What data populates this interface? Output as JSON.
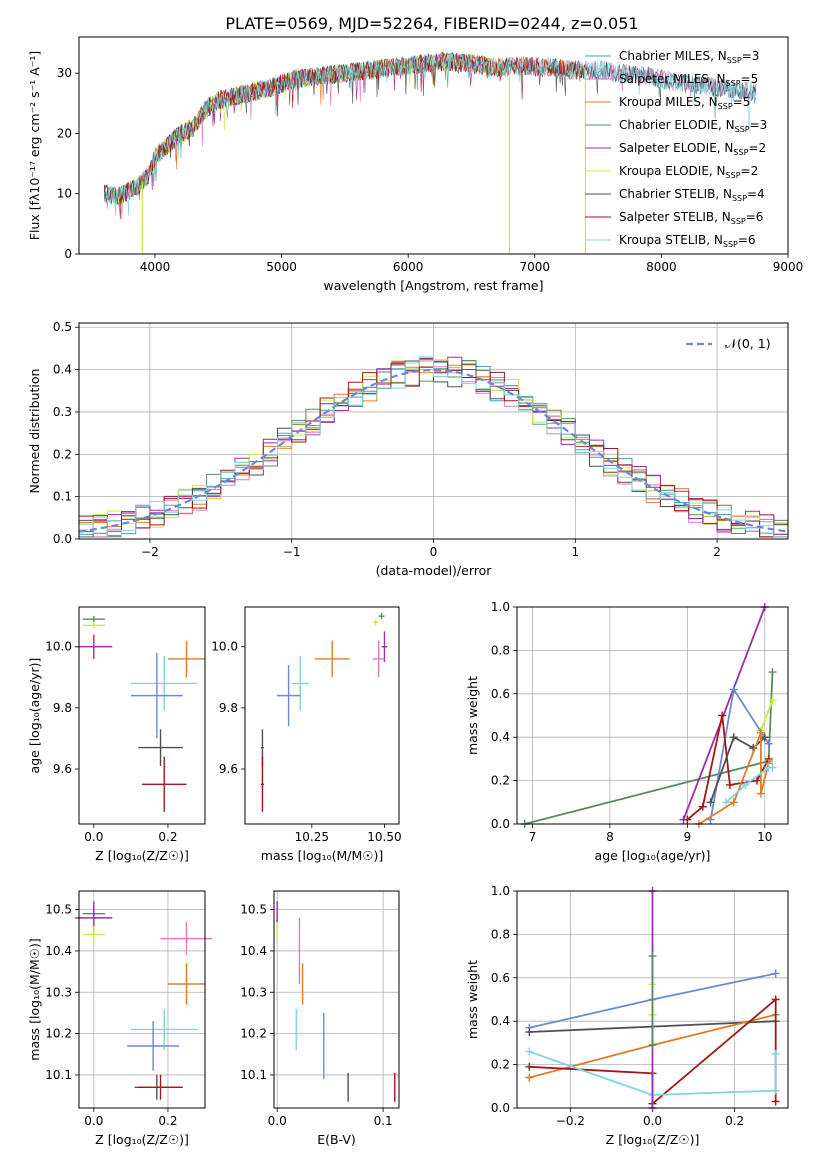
{
  "page_title": "PLATE=0569, MJD=52264, FIBERID=0244, z=0.051",
  "colors": {
    "chabrier_miles": "#4a9fb5",
    "salpeter_miles": "#e377c2",
    "kroupa_miles": "#e07b28",
    "chabrier_elodie": "#5a8a62",
    "salpeter_elodie": "#9a2fa8",
    "kroupa_elodie": "#cfe84a",
    "chabrier_stelib": "#505050",
    "salpeter_stelib": "#a01818",
    "kroupa_stelib": "#7fd6dc",
    "cornflower": "#6a8ad8",
    "grid": "#b0b0b0"
  },
  "chart_data": [
    {
      "id": "spectrum",
      "type": "line",
      "title": "PLATE=0569, MJD=52264, FIBERID=0244, z=0.051",
      "xlabel": "wavelength [Angstrom, rest frame]",
      "ylabel": "Flux [fλ10⁻¹⁷ erg cm⁻² s⁻¹ A⁻¹]",
      "xlim": [
        3400,
        9000
      ],
      "ylim": [
        0,
        36
      ],
      "xticks": [
        "4000",
        "5000",
        "6000",
        "7000",
        "8000",
        "9000"
      ],
      "yticks": [
        "0",
        "10",
        "20",
        "30"
      ],
      "grid": false,
      "legend_position": "top-right",
      "legend": [
        {
          "label": "Chabrier MILES, N",
          "sub": "SSP",
          "tail": "=3"
        },
        {
          "label": "Salpeter MILES, N",
          "sub": "SSP",
          "tail": "=5"
        },
        {
          "label": "Kroupa MILES, N",
          "sub": "SSP",
          "tail": "=5"
        },
        {
          "label": "Chabrier ELODIE, N",
          "sub": "SSP",
          "tail": "=3"
        },
        {
          "label": "Salpeter ELODIE, N",
          "sub": "SSP",
          "tail": "=2"
        },
        {
          "label": "Kroupa ELODIE, N",
          "sub": "SSP",
          "tail": "=2"
        },
        {
          "label": "Chabrier STELIB, N",
          "sub": "SSP",
          "tail": "=4"
        },
        {
          "label": "Salpeter STELIB, N",
          "sub": "SSP",
          "tail": "=6"
        },
        {
          "label": "Kroupa STELIB, N",
          "sub": "SSP",
          "tail": "=6"
        }
      ],
      "continuum": {
        "x": [
          3600,
          3700,
          3850,
          3950,
          4000,
          4100,
          4200,
          4300,
          4400,
          4500,
          4700,
          4900,
          5100,
          5300,
          5500,
          5700,
          5900,
          6100,
          6300,
          6500,
          6700,
          6900,
          7100,
          7300,
          7500,
          7700,
          7900,
          8100,
          8300,
          8500,
          8700
        ],
        "y": [
          10,
          9.5,
          11,
          13,
          16,
          18,
          20,
          21,
          24,
          25.5,
          26.5,
          27.5,
          29,
          29.5,
          30,
          30.5,
          31,
          31.5,
          32,
          31.5,
          31,
          31.2,
          31,
          30.5,
          30.5,
          30,
          29.5,
          28.5,
          28,
          27.5,
          27
        ]
      },
      "series_ranges": [
        {
          "series": "Chabrier MILES",
          "x": [
            3600,
            8750
          ]
        },
        {
          "series": "Salpeter MILES",
          "x": [
            3600,
            8750
          ]
        },
        {
          "series": "Kroupa MILES",
          "x": [
            3600,
            7400
          ]
        },
        {
          "series": "Chabrier ELODIE",
          "x": [
            3600,
            6800
          ]
        },
        {
          "series": "Salpeter ELODIE",
          "x": [
            3600,
            6800
          ]
        },
        {
          "series": "Kroupa ELODIE",
          "x": [
            3600,
            6800
          ]
        },
        {
          "series": "Chabrier STELIB",
          "x": [
            3600,
            8750
          ]
        },
        {
          "series": "Salpeter STELIB",
          "x": [
            3600,
            7400
          ]
        },
        {
          "series": "Kroupa STELIB",
          "x": [
            3600,
            8750
          ]
        }
      ],
      "drops": [
        {
          "x": 3900,
          "y": 0
        },
        {
          "x": 6800,
          "y": 0
        },
        {
          "x": 7400,
          "y": 0
        }
      ]
    },
    {
      "id": "residuals",
      "type": "histogram",
      "xlabel": "(data-model)/error",
      "ylabel": "Normed distribution",
      "xlim": [
        -2.5,
        2.5
      ],
      "ylim": [
        0,
        0.51
      ],
      "xticks": [
        "−2",
        "−1",
        "0",
        "1",
        "2"
      ],
      "yticks": [
        "0.0",
        "0.1",
        "0.2",
        "0.3",
        "0.4",
        "0.5"
      ],
      "grid": true,
      "legend_position": "top-right",
      "legend": [
        {
          "label": "𝒩(0, 1)"
        }
      ],
      "bin_width": 0.1,
      "bin_start": -2.5
    },
    {
      "id": "age_vs_Z",
      "type": "errorbar",
      "xlabel": "Z [log₁₀(Z/Z☉)]",
      "ylabel": "age  [log₁₀(age/yr)]",
      "xlim": [
        -0.04,
        0.3
      ],
      "ylim": [
        9.42,
        10.13
      ],
      "xticks": [
        "0.0",
        "0.2"
      ],
      "yticks": [
        "9.6",
        "9.8",
        "10.0"
      ],
      "points": [
        {
          "x": 0.0,
          "y": 10.09,
          "xerr": 0.03,
          "yerr": 0.01,
          "c": "chabrier_elodie"
        },
        {
          "x": 0.0,
          "y": 10.07,
          "xerr": 0.03,
          "yerr": 0.01,
          "c": "kroupa_elodie"
        },
        {
          "x": 0.0,
          "y": 10.0,
          "xerr": 0.05,
          "yerr": 0.04,
          "c": "salpeter_elodie"
        },
        {
          "x": 0.25,
          "y": 9.96,
          "xerr": 0.05,
          "yerr": 0.06,
          "c": "kroupa_miles"
        },
        {
          "x": 0.19,
          "y": 9.88,
          "xerr": 0.09,
          "yerr": 0.09,
          "c": "kroupa_stelib"
        },
        {
          "x": 0.17,
          "y": 9.84,
          "xerr": 0.07,
          "yerr": 0.14,
          "c": "cornflower"
        },
        {
          "x": 0.18,
          "y": 9.67,
          "xerr": 0.06,
          "yerr": 0.06,
          "c": "chabrier_stelib"
        },
        {
          "x": 0.19,
          "y": 9.55,
          "xerr": 0.06,
          "yerr": 0.09,
          "c": "salpeter_stelib"
        }
      ]
    },
    {
      "id": "age_vs_mass",
      "type": "errorbar",
      "xlabel": "mass [log₁₀(M/M☉)]",
      "ylabel": "",
      "xlim": [
        10.02,
        10.55
      ],
      "ylim": [
        9.42,
        10.13
      ],
      "xticks": [
        "10.25",
        "10.50"
      ],
      "yticks": [
        "9.6",
        "9.8",
        "10.0"
      ],
      "points": [
        {
          "x": 10.49,
          "y": 10.1,
          "xerr": 0.01,
          "yerr": 0.01,
          "c": "chabrier_elodie"
        },
        {
          "x": 10.47,
          "y": 10.08,
          "xerr": 0.01,
          "yerr": 0.01,
          "c": "kroupa_elodie"
        },
        {
          "x": 10.5,
          "y": 10.0,
          "xerr": 0.01,
          "yerr": 0.05,
          "c": "salpeter_elodie"
        },
        {
          "x": 10.48,
          "y": 9.96,
          "xerr": 0.02,
          "yerr": 0.06,
          "c": "salpeter_miles"
        },
        {
          "x": 10.32,
          "y": 9.96,
          "xerr": 0.06,
          "yerr": 0.06,
          "c": "kroupa_miles"
        },
        {
          "x": 10.21,
          "y": 9.88,
          "xerr": 0.03,
          "yerr": 0.09,
          "c": "kroupa_stelib"
        },
        {
          "x": 10.17,
          "y": 9.84,
          "xerr": 0.04,
          "yerr": 0.1,
          "c": "cornflower"
        },
        {
          "x": 10.08,
          "y": 9.67,
          "xerr": 0.005,
          "yerr": 0.06,
          "c": "chabrier_stelib"
        },
        {
          "x": 10.08,
          "y": 9.55,
          "xerr": 0.005,
          "yerr": 0.09,
          "c": "salpeter_stelib"
        }
      ]
    },
    {
      "id": "weight_vs_age",
      "type": "line",
      "xlabel": "age  [log₁₀(age/yr)]",
      "ylabel": "mass weight",
      "xlim": [
        6.8,
        10.3
      ],
      "ylim": [
        0,
        1
      ],
      "xticks": [
        "7",
        "8",
        "9",
        "10"
      ],
      "yticks": [
        "0.0",
        "0.2",
        "0.4",
        "0.6",
        "0.8",
        "1.0"
      ],
      "grid": true,
      "series": [
        {
          "c": "chabrier_elodie",
          "points": [
            [
              6.9,
              0.0
            ],
            [
              10.05,
              0.29
            ],
            [
              10.1,
              0.7
            ]
          ]
        },
        {
          "c": "salpeter_elodie",
          "points": [
            [
              8.95,
              0.02
            ],
            [
              10.0,
              1.0
            ]
          ]
        },
        {
          "c": "kroupa_elodie",
          "points": [
            [
              9.95,
              0.43
            ],
            [
              10.1,
              0.57
            ]
          ]
        },
        {
          "c": "cornflower",
          "points": [
            [
              9.3,
              0.02
            ],
            [
              9.6,
              0.62
            ],
            [
              10.05,
              0.37
            ]
          ]
        },
        {
          "c": "salpeter_stelib",
          "points": [
            [
              9.0,
              0.02
            ],
            [
              9.2,
              0.08
            ],
            [
              9.45,
              0.5
            ],
            [
              9.55,
              0.18
            ],
            [
              9.9,
              0.2
            ],
            [
              10.05,
              0.3
            ]
          ]
        },
        {
          "c": "chabrier_stelib",
          "points": [
            [
              9.3,
              0.1
            ],
            [
              9.6,
              0.4
            ],
            [
              9.85,
              0.35
            ],
            [
              10.0,
              0.4
            ]
          ]
        },
        {
          "c": "kroupa_miles",
          "points": [
            [
              9.15,
              0.0
            ],
            [
              9.6,
              0.1
            ],
            [
              9.95,
              0.42
            ],
            [
              9.95,
              0.14
            ],
            [
              10.05,
              0.28
            ]
          ]
        },
        {
          "c": "kroupa_stelib",
          "points": [
            [
              9.5,
              0.1
            ],
            [
              9.75,
              0.18
            ],
            [
              10.05,
              0.26
            ],
            [
              10.1,
              0.26
            ]
          ]
        }
      ]
    },
    {
      "id": "mass_vs_Z",
      "type": "errorbar",
      "xlabel": "Z [log₁₀(Z/Z☉)]",
      "ylabel": "mass [log₁₀(M/M☉)]",
      "xlim": [
        -0.04,
        0.3
      ],
      "ylim": [
        10.02,
        10.545
      ],
      "xticks": [
        "0.0",
        "0.2"
      ],
      "yticks": [
        "10.1",
        "10.2",
        "10.3",
        "10.4",
        "10.5"
      ],
      "grid": true,
      "points": [
        {
          "x": 0.0,
          "y": 10.49,
          "xerr": 0.03,
          "yerr": 0.01,
          "c": "chabrier_elodie"
        },
        {
          "x": 0.0,
          "y": 10.48,
          "xerr": 0.05,
          "yerr": 0.04,
          "c": "salpeter_elodie"
        },
        {
          "x": 0.0,
          "y": 10.44,
          "xerr": 0.03,
          "yerr": 0.02,
          "c": "kroupa_elodie"
        },
        {
          "x": 0.25,
          "y": 10.43,
          "xerr": 0.07,
          "yerr": 0.04,
          "c": "salpeter_miles"
        },
        {
          "x": 0.25,
          "y": 10.32,
          "xerr": 0.05,
          "yerr": 0.05,
          "c": "kroupa_miles"
        },
        {
          "x": 0.19,
          "y": 10.21,
          "xerr": 0.09,
          "yerr": 0.05,
          "c": "kroupa_stelib"
        },
        {
          "x": 0.16,
          "y": 10.17,
          "xerr": 0.07,
          "yerr": 0.06,
          "c": "cornflower"
        },
        {
          "x": 0.17,
          "y": 10.07,
          "xerr": 0.06,
          "yerr": 0.03,
          "c": "chabrier_stelib"
        },
        {
          "x": 0.18,
          "y": 10.07,
          "xerr": 0.06,
          "yerr": 0.03,
          "c": "salpeter_stelib"
        }
      ]
    },
    {
      "id": "mass_vs_ebv",
      "type": "errorbar",
      "xlabel": "E(B-V)",
      "ylabel": "",
      "xlim": [
        -0.003,
        0.115
      ],
      "ylim": [
        10.02,
        10.545
      ],
      "xticks": [
        "0.0",
        "0.1"
      ],
      "yticks": [
        "10.1",
        "10.2",
        "10.3",
        "10.4",
        "10.5"
      ],
      "grid": true,
      "points": [
        {
          "x": 0.0,
          "y": 10.49,
          "xerr": 0,
          "yerr": 0.03,
          "c": "salpeter_elodie"
        },
        {
          "x": 0.0,
          "y": 10.45,
          "xerr": 0,
          "yerr": 0.02,
          "c": "kroupa_elodie"
        },
        {
          "x": 0.021,
          "y": 10.4,
          "xerr": 0,
          "yerr": 0.08,
          "c": "salpeter_miles"
        },
        {
          "x": 0.024,
          "y": 10.32,
          "xerr": 0,
          "yerr": 0.05,
          "c": "kroupa_miles"
        },
        {
          "x": 0.018,
          "y": 10.21,
          "xerr": 0,
          "yerr": 0.05,
          "c": "kroupa_stelib"
        },
        {
          "x": 0.044,
          "y": 10.17,
          "xerr": 0,
          "yerr": 0.08,
          "c": "cornflower"
        },
        {
          "x": 0.067,
          "y": 10.07,
          "xerr": 0,
          "yerr": 0.035,
          "c": "chabrier_stelib"
        },
        {
          "x": 0.111,
          "y": 10.07,
          "xerr": 0,
          "yerr": 0.035,
          "c": "salpeter_stelib"
        }
      ]
    },
    {
      "id": "weight_vs_Z",
      "type": "line",
      "xlabel": "Z [log₁₀(Z/Z☉)]",
      "ylabel": "mass weight",
      "xlim": [
        -0.33,
        0.33
      ],
      "ylim": [
        0,
        1
      ],
      "xticks": [
        "−0.2",
        "0.0",
        "0.2"
      ],
      "yticks": [
        "0.0",
        "0.2",
        "0.4",
        "0.6",
        "0.8",
        "1.0"
      ],
      "grid": true,
      "series": [
        {
          "c": "cornflower",
          "points": [
            [
              -0.3,
              0.37
            ],
            [
              0.0,
              0.5
            ],
            [
              0.3,
              0.62
            ]
          ]
        },
        {
          "c": "chabrier_stelib",
          "points": [
            [
              -0.3,
              0.35
            ],
            [
              0.3,
              0.4
            ]
          ]
        },
        {
          "c": "kroupa_miles",
          "points": [
            [
              -0.3,
              0.14
            ],
            [
              0.0,
              0.29
            ],
            [
              0.3,
              0.43
            ]
          ]
        },
        {
          "c": "salpeter_stelib",
          "points": [
            [
              -0.3,
              0.19
            ],
            [
              0.0,
              0.16
            ],
            [
              0.0,
              0.02
            ],
            [
              0.3,
              0.5
            ],
            [
              0.3,
              0.03
            ]
          ]
        },
        {
          "c": "kroupa_stelib",
          "points": [
            [
              -0.3,
              0.26
            ],
            [
              0.0,
              0.06
            ],
            [
              0.3,
              0.08
            ],
            [
              0.3,
              0.25
            ]
          ]
        },
        {
          "c": "salpeter_elodie",
          "points": [
            [
              0.0,
              0.0
            ],
            [
              0.0,
              1.0
            ]
          ]
        },
        {
          "c": "kroupa_elodie",
          "points": [
            [
              0.0,
              0.43
            ],
            [
              0.0,
              0.57
            ]
          ]
        },
        {
          "c": "chabrier_elodie",
          "points": [
            [
              0.0,
              0.29
            ],
            [
              0.0,
              0.7
            ]
          ]
        }
      ]
    }
  ]
}
